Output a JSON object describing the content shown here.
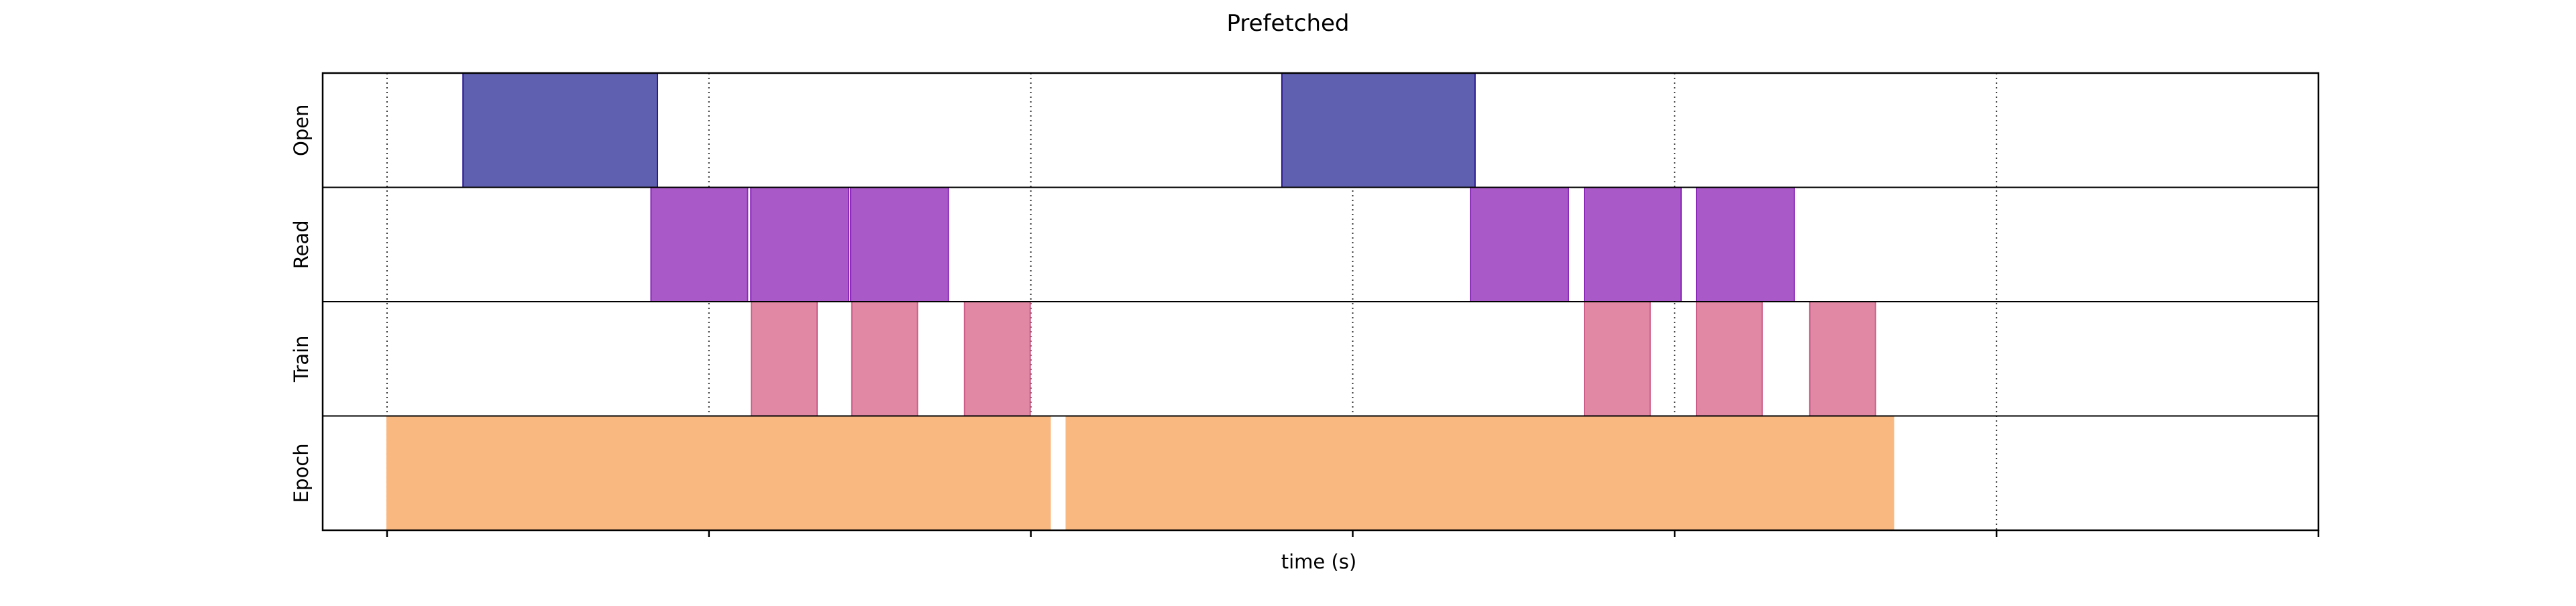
{
  "chart_data": {
    "type": "timeline",
    "title": "Prefetched",
    "xlabel": "time (s)",
    "ylabel": "",
    "xlim": [
      -0.1,
      3.0
    ],
    "ticks": [
      0,
      0.5,
      1.0,
      1.5,
      2.0,
      2.5,
      3.0
    ],
    "grid": "x",
    "rows": [
      {
        "name": "Open",
        "color": "#6060b0",
        "edge": "#2a1a90",
        "bars": [
          [
            0.118,
            0.42
          ],
          [
            1.39,
            1.69
          ]
        ]
      },
      {
        "name": "Read",
        "color": "#aa5ac8",
        "edge": "#8a28b8",
        "bars": [
          [
            0.41,
            0.56
          ],
          [
            0.565,
            0.717
          ],
          [
            0.72,
            0.872
          ],
          [
            1.683,
            1.835
          ],
          [
            1.86,
            2.01
          ],
          [
            2.034,
            2.186
          ]
        ]
      },
      {
        "name": "Train",
        "color": "#e088a4",
        "edge": "#cc5c86",
        "bars": [
          [
            0.566,
            0.668
          ],
          [
            0.722,
            0.824
          ],
          [
            0.897,
            0.999
          ],
          [
            1.86,
            1.962
          ],
          [
            2.034,
            2.136
          ],
          [
            2.21,
            2.312
          ]
        ]
      },
      {
        "name": "Epoch",
        "color": "#f9b880",
        "edge": "#f9b880",
        "bars": [
          [
            0.0,
            1.03
          ],
          [
            1.055,
            2.34
          ]
        ]
      }
    ]
  }
}
